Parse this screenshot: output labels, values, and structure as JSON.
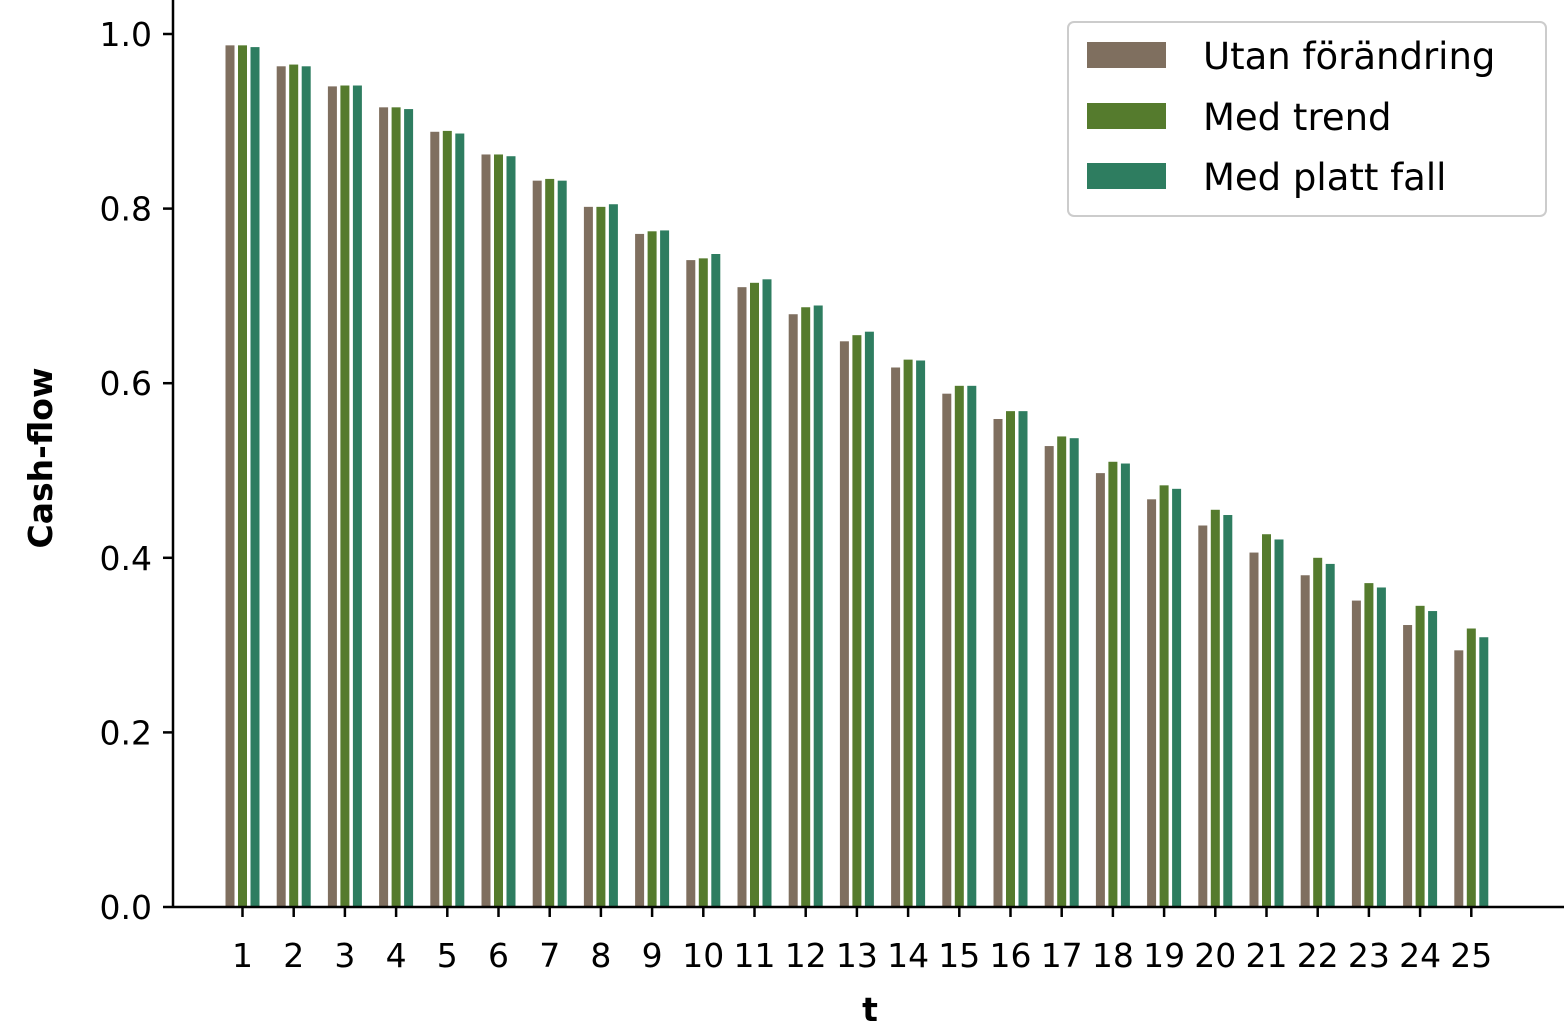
{
  "chart_data": {
    "type": "bar",
    "title": "",
    "xlabel": "t",
    "ylabel": "Cash-flow",
    "ylim": [
      0,
      1.0
    ],
    "yticks": [
      "0.0",
      "0.2",
      "0.4",
      "0.6",
      "0.8",
      "1.0"
    ],
    "ytick_values": [
      0,
      0.2,
      0.4,
      0.6,
      0.8,
      1.0
    ],
    "categories": [
      "1",
      "2",
      "3",
      "4",
      "5",
      "6",
      "7",
      "8",
      "9",
      "10",
      "11",
      "12",
      "13",
      "14",
      "15",
      "16",
      "17",
      "18",
      "19",
      "20",
      "21",
      "22",
      "23",
      "24",
      "25"
    ],
    "grid": false,
    "legend_position": "top-right",
    "series": [
      {
        "name": "Utan förändring",
        "color": "#7f6f5f",
        "values": [
          0.987,
          0.963,
          0.94,
          0.916,
          0.888,
          0.862,
          0.832,
          0.802,
          0.771,
          0.741,
          0.71,
          0.679,
          0.648,
          0.618,
          0.588,
          0.559,
          0.528,
          0.497,
          0.467,
          0.437,
          0.406,
          0.38,
          0.351,
          0.323,
          0.294
        ]
      },
      {
        "name": "Med trend",
        "color": "#557b2d",
        "values": [
          0.987,
          0.965,
          0.941,
          0.916,
          0.889,
          0.862,
          0.834,
          0.802,
          0.774,
          0.743,
          0.715,
          0.687,
          0.655,
          0.627,
          0.597,
          0.568,
          0.539,
          0.51,
          0.483,
          0.455,
          0.427,
          0.4,
          0.371,
          0.345,
          0.319
        ]
      },
      {
        "name": "Med platt fall",
        "color": "#2e7d60",
        "values": [
          0.985,
          0.963,
          0.941,
          0.914,
          0.886,
          0.86,
          0.832,
          0.805,
          0.775,
          0.748,
          0.719,
          0.689,
          0.659,
          0.626,
          0.597,
          0.568,
          0.537,
          0.508,
          0.479,
          0.449,
          0.421,
          0.393,
          0.366,
          0.339,
          0.309
        ]
      }
    ]
  }
}
